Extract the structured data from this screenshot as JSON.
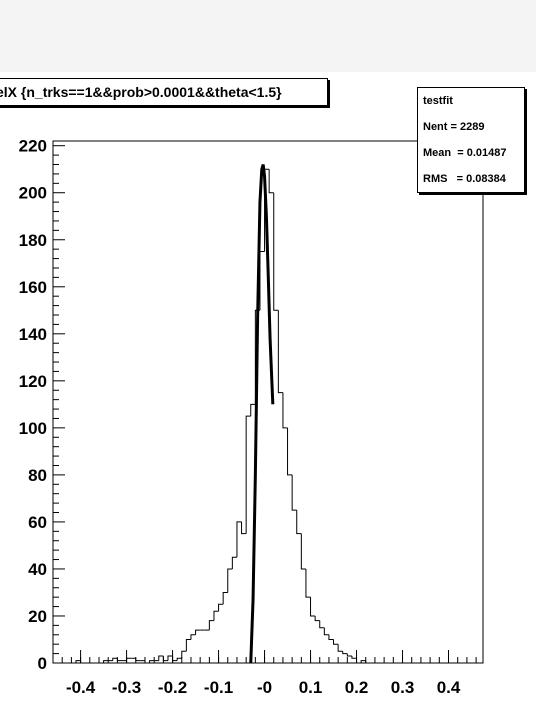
{
  "title": "elX {n_trks==1&&prob>0.0001&&theta<1.5}",
  "stats": {
    "name": "testfit",
    "entries": "Nent = 2289",
    "mean": "Mean  = 0.01487",
    "rms": "RMS   = 0.08384"
  },
  "chart_data": {
    "type": "bar",
    "histogram": true,
    "title": "elX {n_trks==1&&prob>0.0001&&theta<1.5}",
    "xlabel": "",
    "ylabel": "",
    "xlim": [
      -0.46,
      0.475
    ],
    "ylim": [
      0,
      222
    ],
    "bin_width": 0.01,
    "x_ticks": [
      -0.4,
      -0.3,
      -0.2,
      -0.1,
      0,
      0.1,
      0.2,
      0.3,
      0.4
    ],
    "x_tick_labels": [
      "-0.4",
      "-0.3",
      "-0.2",
      "-0.1",
      "-0",
      "0.1",
      "0.2",
      "0.3",
      "0.4"
    ],
    "y_ticks": [
      0,
      20,
      40,
      60,
      80,
      100,
      120,
      140,
      160,
      180,
      200,
      220
    ],
    "y_tick_labels": [
      "0",
      "20",
      "40",
      "60",
      "80",
      "100",
      "120",
      "140",
      "160",
      "180",
      "200",
      "220"
    ],
    "grid": false,
    "bin_lows": [
      -0.46,
      -0.45,
      -0.44,
      -0.43,
      -0.42,
      -0.41,
      -0.4,
      -0.39,
      -0.38,
      -0.37,
      -0.36,
      -0.35,
      -0.34,
      -0.33,
      -0.32,
      -0.31,
      -0.3,
      -0.29,
      -0.28,
      -0.27,
      -0.26,
      -0.25,
      -0.24,
      -0.23,
      -0.22,
      -0.21,
      -0.2,
      -0.19,
      -0.18,
      -0.17,
      -0.16,
      -0.15,
      -0.14,
      -0.13,
      -0.12,
      -0.11,
      -0.1,
      -0.09,
      -0.08,
      -0.07,
      -0.06,
      -0.05,
      -0.04,
      -0.03,
      -0.02,
      -0.01,
      0.0,
      0.01,
      0.02,
      0.03,
      0.04,
      0.05,
      0.06,
      0.07,
      0.08,
      0.09,
      0.1,
      0.11,
      0.12,
      0.13,
      0.14,
      0.15,
      0.16,
      0.17,
      0.18,
      0.19,
      0.2,
      0.21,
      0.22,
      0.23,
      0.24,
      0.25,
      0.26,
      0.27,
      0.28,
      0.29,
      0.3,
      0.31,
      0.32,
      0.33,
      0.34,
      0.35,
      0.36,
      0.37,
      0.38,
      0.39,
      0.4,
      0.41,
      0.42,
      0.43,
      0.44,
      0.45,
      0.46
    ],
    "values": [
      0,
      0,
      0,
      0,
      0,
      1,
      0,
      0,
      0,
      0,
      0,
      1,
      1,
      2,
      1,
      1,
      2,
      2,
      1,
      1,
      0,
      1,
      1,
      3,
      1,
      3,
      1,
      2,
      5,
      10,
      12,
      14,
      14,
      14,
      18,
      22,
      25,
      30,
      40,
      45,
      60,
      55,
      105,
      110,
      150,
      175,
      210,
      200,
      150,
      115,
      100,
      80,
      65,
      55,
      40,
      28,
      20,
      18,
      15,
      12,
      10,
      8,
      5,
      4,
      3,
      2,
      0,
      1,
      0,
      0,
      0,
      0,
      0,
      0,
      0,
      0,
      0,
      0,
      0,
      0,
      0,
      0,
      0,
      0,
      0,
      0,
      0,
      0,
      0,
      0,
      0,
      0,
      0
    ],
    "fit_curve": {
      "type": "gaussian",
      "points": [
        [
          -0.03,
          0
        ],
        [
          -0.025,
          27
        ],
        [
          -0.02,
          80
        ],
        [
          -0.015,
          148
        ],
        [
          -0.01,
          196
        ],
        [
          -0.006,
          210
        ],
        [
          -0.003,
          212
        ],
        [
          0.0,
          207
        ],
        [
          0.004,
          190
        ],
        [
          0.008,
          165
        ],
        [
          0.012,
          138
        ],
        [
          0.018,
          110
        ]
      ]
    }
  }
}
